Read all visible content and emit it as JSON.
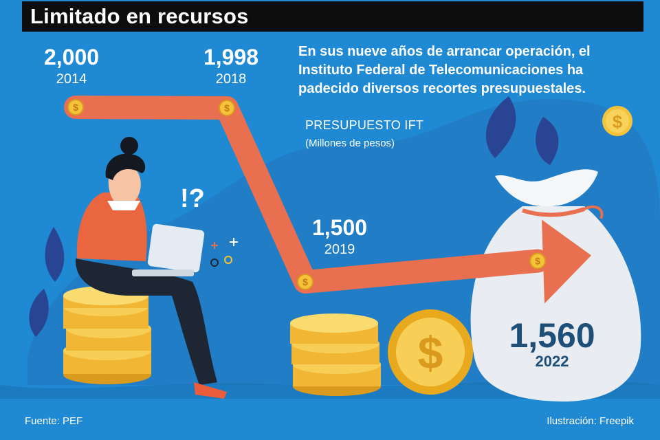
{
  "title": "Limitado en recursos",
  "description": "En sus nueve años de arrancar operación, el Instituto Federal de Telecomunicaciones ha padecido diversos recortes presupuestales.",
  "unit_title": "PRESUPUESTO IFT",
  "unit_subtitle": "(Millones de pesos)",
  "source": "Fuente: PEF",
  "credit": "Ilustración: Freepik",
  "exclaim_text": "!?",
  "colors": {
    "background": "#1f89d4",
    "arrow": "#e86f4f",
    "title_bar": "#0d0d0d",
    "coin": "#f5c33b",
    "bag": "#e9edf1",
    "final_text": "#1d4f78"
  },
  "chart_data": {
    "type": "line",
    "x": [
      "2014",
      "2018",
      "2019",
      "2022"
    ],
    "series": [
      {
        "values": [
          2000,
          1998,
          1500,
          1560
        ]
      }
    ],
    "value_labels": [
      "2,000",
      "1,998",
      "1,500",
      "1,560"
    ],
    "title": "PRESUPUESTO IFT",
    "ylabel": "(Millones de pesos)",
    "grid": false,
    "legend": "none"
  }
}
